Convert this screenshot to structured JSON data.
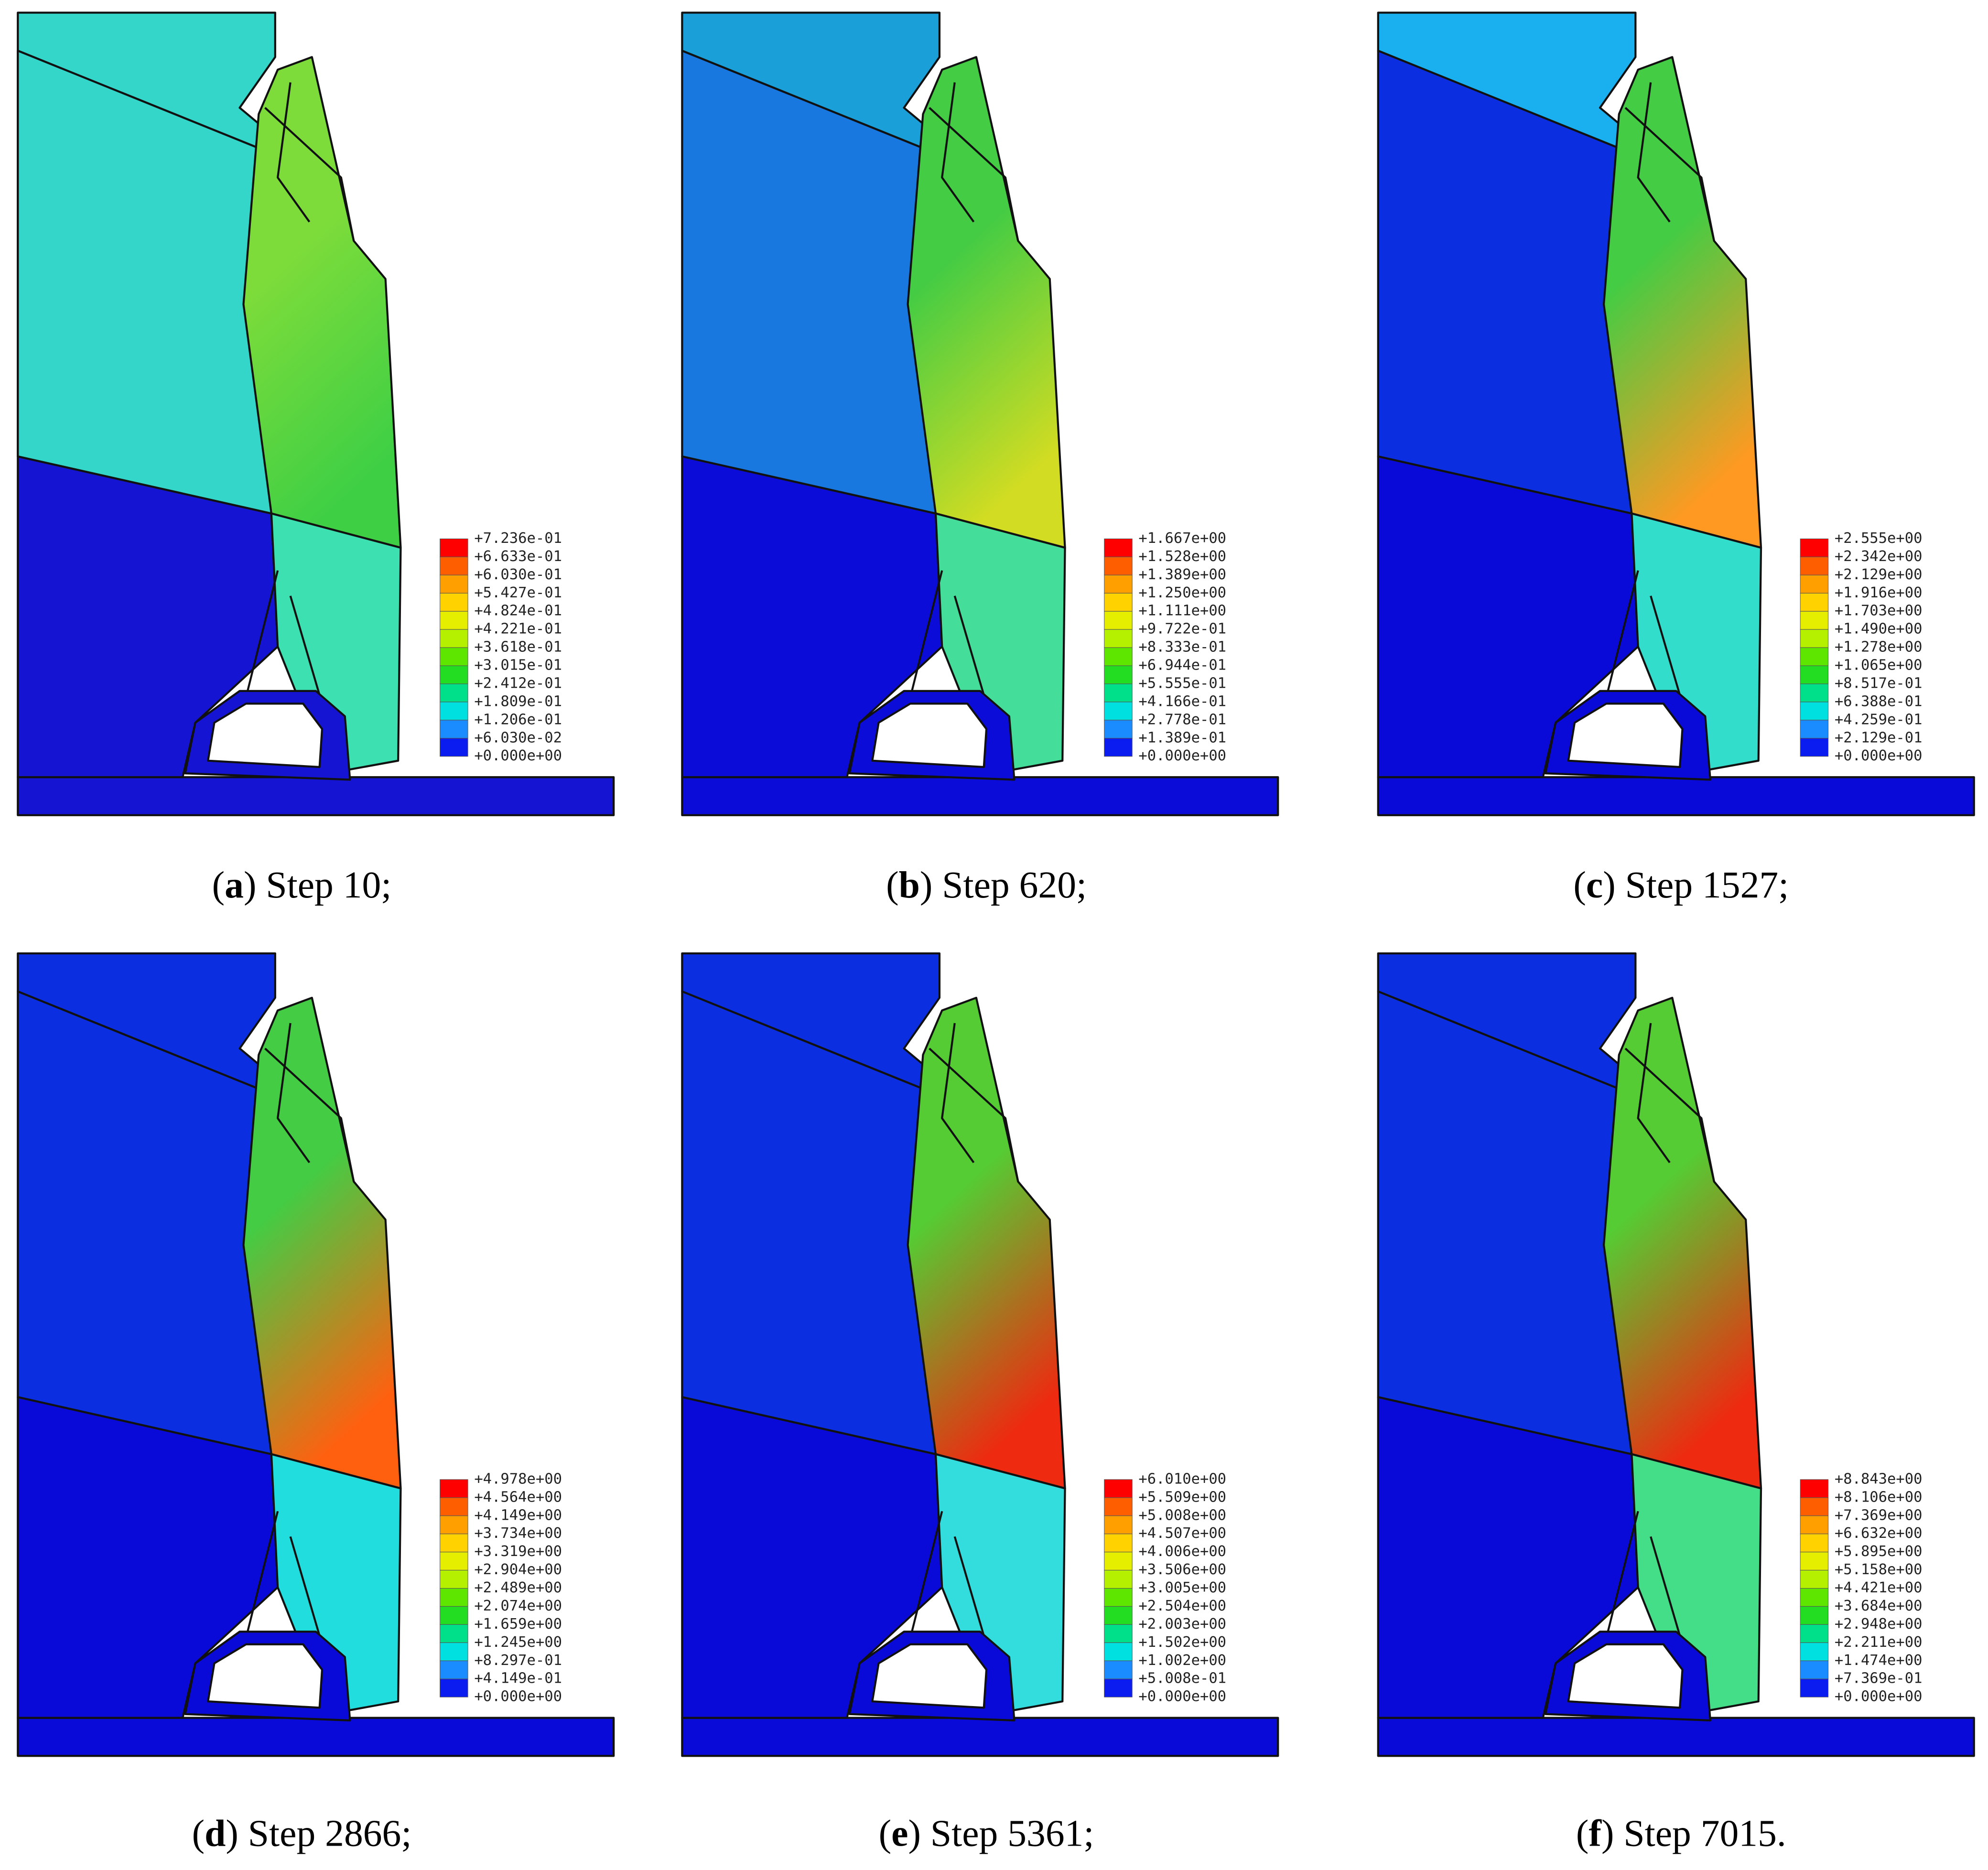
{
  "panels": [
    {
      "caption": {
        "prefix": "(",
        "letter": "a",
        "text": ") Step 10;"
      },
      "legend": [
        "+7.236e-01",
        "+6.633e-01",
        "+6.030e-01",
        "+5.427e-01",
        "+4.824e-01",
        "+4.221e-01",
        "+3.618e-01",
        "+3.015e-01",
        "+2.412e-01",
        "+1.809e-01",
        "+1.206e-01",
        "+6.030e-02",
        "+0.000e+00"
      ]
    },
    {
      "caption": {
        "prefix": "(",
        "letter": "b",
        "text": ") Step 620;"
      },
      "legend": [
        "+1.667e+00",
        "+1.528e+00",
        "+1.389e+00",
        "+1.250e+00",
        "+1.111e+00",
        "+9.722e-01",
        "+8.333e-01",
        "+6.944e-01",
        "+5.555e-01",
        "+4.166e-01",
        "+2.778e-01",
        "+1.389e-01",
        "+0.000e+00"
      ]
    },
    {
      "caption": {
        "prefix": "(",
        "letter": "c",
        "text": ") Step 1527;"
      },
      "legend": [
        "+2.555e+00",
        "+2.342e+00",
        "+2.129e+00",
        "+1.916e+00",
        "+1.703e+00",
        "+1.490e+00",
        "+1.278e+00",
        "+1.065e+00",
        "+8.517e-01",
        "+6.388e-01",
        "+4.259e-01",
        "+2.129e-01",
        "+0.000e+00"
      ]
    },
    {
      "caption": {
        "prefix": "(",
        "letter": "d",
        "text": ") Step 2866;"
      },
      "legend": [
        "+4.978e+00",
        "+4.564e+00",
        "+4.149e+00",
        "+3.734e+00",
        "+3.319e+00",
        "+2.904e+00",
        "+2.489e+00",
        "+2.074e+00",
        "+1.659e+00",
        "+1.245e+00",
        "+8.297e-01",
        "+4.149e-01",
        "+0.000e+00"
      ]
    },
    {
      "caption": {
        "prefix": "(",
        "letter": "e",
        "text": ") Step 5361;"
      },
      "legend": [
        "+6.010e+00",
        "+5.509e+00",
        "+5.008e+00",
        "+4.507e+00",
        "+4.006e+00",
        "+3.506e+00",
        "+3.005e+00",
        "+2.504e+00",
        "+2.003e+00",
        "+1.502e+00",
        "+1.002e+00",
        "+5.008e-01",
        "+0.000e+00"
      ]
    },
    {
      "caption": {
        "prefix": "(",
        "letter": "f",
        "text": ") Step 7015."
      },
      "legend": [
        "+8.843e+00",
        "+8.106e+00",
        "+7.369e+00",
        "+6.632e+00",
        "+5.895e+00",
        "+5.158e+00",
        "+4.421e+00",
        "+3.684e+00",
        "+2.948e+00",
        "+2.211e+00",
        "+1.474e+00",
        "+7.369e-01",
        "+0.000e+00"
      ]
    }
  ]
}
